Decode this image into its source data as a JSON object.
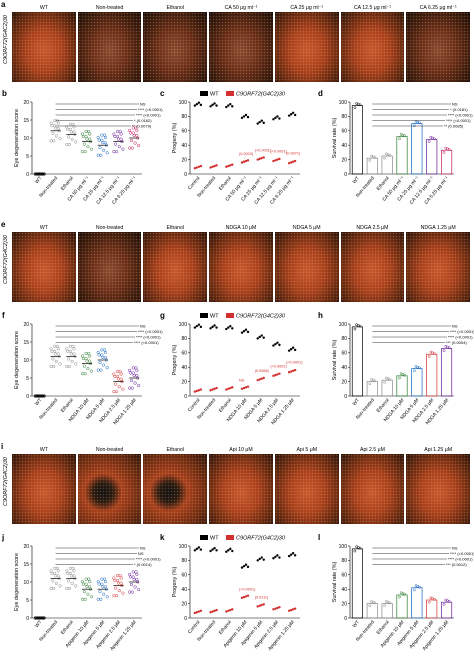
{
  "rows": [
    {
      "letter": "a",
      "genotype": "C9ORF72(G4C2)30",
      "headers": [
        "WT",
        "Non-treated",
        "Ethanol",
        "CA 50 μg ml⁻¹",
        "CA 25 μg ml⁻¹",
        "CA 12.5 μg ml⁻¹",
        "CA 6.25 μg ml⁻¹"
      ],
      "styles": [
        "normal",
        "dark",
        "dark",
        "dark",
        "normal",
        "normal",
        "dark"
      ]
    },
    {
      "letter": "e",
      "genotype": "C9ORF72(G4C2)30",
      "headers": [
        "WT",
        "Non-treated",
        "Ethanol",
        "NDGA 10 μM",
        "NDGA 5 μM",
        "NDGA 2.5 μM",
        "NDGA 1.25 μM"
      ],
      "styles": [
        "normal",
        "dark",
        "normal",
        "normal",
        "normal",
        "normal",
        "normal"
      ]
    },
    {
      "letter": "i",
      "genotype": "C9ORF72(G4C2)30",
      "headers": [
        "WT",
        "Non-treated",
        "Ethanol",
        "Api 10 μM",
        "Api 5 μM",
        "Api 2.5 μM",
        "Api 1.25 μM"
      ],
      "styles": [
        "normal",
        "black",
        "black",
        "normal",
        "normal",
        "normal",
        "normal"
      ]
    }
  ],
  "graph_rows": [
    {
      "left": {
        "letter": "b",
        "ylabel": "Eye degeneration score",
        "ylim": [
          0,
          20
        ],
        "ticks": [
          0,
          5,
          10,
          15,
          20
        ],
        "categories": [
          "WT",
          "Non-treated",
          "Ethanol",
          "CA 50 μg ml⁻¹",
          "CA 25 μg ml⁻¹",
          "CA 12.5 μg ml⁻¹",
          "CA 6.25 μg ml⁻¹"
        ],
        "means": [
          0,
          12,
          11,
          9,
          8,
          9,
          10
        ],
        "colors": [
          "#000000",
          "#888888",
          "#888888",
          "#2e7d32",
          "#1565c0",
          "#6a1b9a",
          "#c2185b"
        ],
        "annotations": [
          "NS",
          "**** (<0.0001)",
          "**** (<0.0001)",
          "* (0.0162)",
          "** (0.0079)"
        ]
      },
      "middle": {
        "letter": "c",
        "ylabel": "Progeny (%)",
        "legend": [
          "WT",
          "C9ORF72(G4C2)30"
        ],
        "ylim": [
          0,
          100
        ],
        "ticks": [
          0,
          20,
          40,
          60,
          80,
          100
        ],
        "categories": [
          "Control",
          "Non-treated",
          "Ethanol",
          "CA 50 μg ml⁻¹",
          "CA 25 μg ml⁻¹",
          "CA 12.5 μg ml⁻¹",
          "CA 6.25 μg ml⁻¹"
        ],
        "wt": [
          97,
          96,
          95,
          80,
          72,
          78,
          83
        ],
        "c9": [
          10,
          11,
          12,
          18,
          22,
          20,
          17
        ],
        "annotations": [
          "(0.0003)",
          "(<0.0001)",
          "(<0.0001)",
          "(0.0071)"
        ]
      },
      "right": {
        "letter": "d",
        "ylabel": "Survival rate (%)",
        "ylim": [
          0,
          100
        ],
        "ticks": [
          0,
          20,
          40,
          60,
          80,
          100
        ],
        "categories": [
          "WT",
          "Non-treated",
          "Ethanol",
          "CA 50 μg ml⁻¹",
          "CA 25 μg ml⁻¹",
          "CA 12.5 μg ml⁻¹",
          "CA 6.25 μg ml⁻¹"
        ],
        "values": [
          95,
          22,
          25,
          52,
          70,
          48,
          33
        ],
        "colors": [
          "#000000",
          "#888888",
          "#888888",
          "#2e7d32",
          "#1565c0",
          "#6a1b9a",
          "#c2185b"
        ],
        "annotations": [
          "NS",
          "* (0.0181)",
          "**** (<0.0001)",
          "**** (<0.0001)",
          "** (0.0085)"
        ]
      }
    },
    {
      "left": {
        "letter": "f",
        "ylabel": "Eye degeneration score",
        "ylim": [
          0,
          20
        ],
        "ticks": [
          0,
          5,
          10,
          15,
          20
        ],
        "categories": [
          "WT",
          "Non-treated",
          "Ethanol",
          "NDGA 10 μM",
          "NDGA 5 μM",
          "NDGA 2.5 μM",
          "NDGA 1.25 μM"
        ],
        "means": [
          0,
          11,
          11,
          9,
          10,
          4,
          5
        ],
        "colors": [
          "#000000",
          "#888888",
          "#888888",
          "#2e7d32",
          "#1565c0",
          "#d32f2f",
          "#6a1b9a"
        ],
        "annotations": [
          "NS",
          "**** (<0.0001)",
          "**** (<0.0001)",
          "**** (<0.0001)"
        ]
      },
      "middle": {
        "letter": "g",
        "ylabel": "Progeny (%)",
        "legend": [
          "WT",
          "C9ORF72(G4C2)30"
        ],
        "ylim": [
          0,
          100
        ],
        "ticks": [
          0,
          20,
          40,
          60,
          80,
          100
        ],
        "categories": [
          "Control",
          "Non-treated",
          "Ethanol",
          "NDGA 10 μM",
          "NDGA 5 μM",
          "NDGA 2.5 μM",
          "NDGA 1.25 μM"
        ],
        "wt": [
          97,
          96,
          95,
          90,
          82,
          72,
          65
        ],
        "c9": [
          8,
          10,
          11,
          12,
          24,
          30,
          35
        ],
        "annotations": [
          "NS",
          "(0.0068)",
          "(<0.0001)",
          "(<0.0001)"
        ]
      },
      "right": {
        "letter": "h",
        "ylabel": "Survival rate (%)",
        "ylim": [
          0,
          100
        ],
        "ticks": [
          0,
          20,
          40,
          60,
          80,
          100
        ],
        "categories": [
          "WT",
          "Non-treated",
          "Ethanol",
          "NDGA 10 μM",
          "NDGA 5 μM",
          "NDGA 2.5 μM",
          "NDGA 1.25 μM"
        ],
        "values": [
          96,
          20,
          22,
          28,
          38,
          58,
          66
        ],
        "colors": [
          "#000000",
          "#888888",
          "#888888",
          "#2e7d32",
          "#1565c0",
          "#d32f2f",
          "#6a1b9a"
        ],
        "annotations": [
          "NS",
          "**** (<0.0001)",
          "**** (<0.0001)",
          "*** (0.0004)"
        ]
      }
    },
    {
      "left": {
        "letter": "j",
        "ylabel": "Eye degeneration score",
        "ylim": [
          0,
          20
        ],
        "ticks": [
          0,
          5,
          10,
          15,
          20
        ],
        "categories": [
          "WT",
          "Non-treated",
          "Ethanol",
          "Apigenin 10 μM",
          "Apigenin 5 μM",
          "Apigenin 2.5 μM",
          "Apigenin 1.25 μM"
        ],
        "means": [
          0,
          11,
          11,
          8,
          8,
          9,
          10
        ],
        "colors": [
          "#000000",
          "#888888",
          "#888888",
          "#2e7d32",
          "#1565c0",
          "#d32f2f",
          "#6a1b9a"
        ],
        "annotations": [
          "NS",
          "NS",
          "**** (<0.0001)",
          "* (0.0014)"
        ]
      },
      "middle": {
        "letter": "k",
        "ylabel": "Progeny (%)",
        "legend": [
          "WT",
          "C9ORF72(G4C2)30"
        ],
        "ylim": [
          0,
          100
        ],
        "ticks": [
          0,
          20,
          40,
          60,
          80,
          100
        ],
        "categories": [
          "Control",
          "Non-treated",
          "Ethanol",
          "Apigenin 10 μM",
          "Apigenin 5 μM",
          "Apigenin 2.5 μM",
          "Apigenin 1.25 μM"
        ],
        "wt": [
          96,
          95,
          94,
          72,
          82,
          85,
          88
        ],
        "c9": [
          9,
          10,
          11,
          30,
          18,
          14,
          12
        ],
        "annotations": [
          "(<0.0001)",
          "(0.0111)"
        ]
      },
      "right": {
        "letter": "l",
        "ylabel": "Survival rate (%)",
        "ylim": [
          0,
          100
        ],
        "ticks": [
          0,
          20,
          40,
          60,
          80,
          100
        ],
        "categories": [
          "WT",
          "Non-treated",
          "Ethanol",
          "Apigenin 10 μM",
          "Apigenin 5 μM",
          "Apigenin 2.5 μM",
          "Apigenin 1.25 μM"
        ],
        "values": [
          96,
          20,
          20,
          32,
          42,
          25,
          22
        ],
        "colors": [
          "#000000",
          "#888888",
          "#888888",
          "#2e7d32",
          "#1565c0",
          "#d32f2f",
          "#6a1b9a"
        ],
        "annotations": [
          "NS",
          "**** (<0.0001)",
          "**** (<0.0001)",
          "*** (0.0012)"
        ]
      }
    }
  ],
  "chart_data": [
    {
      "type": "scatter",
      "panel": "b",
      "title": "",
      "ylabel": "Eye degeneration score",
      "categories": [
        "WT",
        "Non-treated",
        "Ethanol",
        "CA 50 μg ml⁻¹",
        "CA 25 μg ml⁻¹",
        "CA 12.5 μg ml⁻¹",
        "CA 6.25 μg ml⁻¹"
      ],
      "values": [
        0,
        12,
        11,
        9,
        8,
        9,
        10
      ],
      "ylim": [
        0,
        20
      ]
    },
    {
      "type": "scatter",
      "panel": "c",
      "title": "",
      "ylabel": "Progeny (%)",
      "categories": [
        "Control",
        "Non-treated",
        "Ethanol",
        "CA 50 μg ml⁻¹",
        "CA 25 μg ml⁻¹",
        "CA 12.5 μg ml⁻¹",
        "CA 6.25 μg ml⁻¹"
      ],
      "series": [
        {
          "name": "WT",
          "values": [
            97,
            96,
            95,
            80,
            72,
            78,
            83
          ]
        },
        {
          "name": "C9ORF72(G4C2)30",
          "values": [
            10,
            11,
            12,
            18,
            22,
            20,
            17
          ]
        }
      ],
      "ylim": [
        0,
        100
      ]
    },
    {
      "type": "bar",
      "panel": "d",
      "title": "",
      "ylabel": "Survival rate (%)",
      "categories": [
        "WT",
        "Non-treated",
        "Ethanol",
        "CA 50 μg ml⁻¹",
        "CA 25 μg ml⁻¹",
        "CA 12.5 μg ml⁻¹",
        "CA 6.25 μg ml⁻¹"
      ],
      "values": [
        95,
        22,
        25,
        52,
        70,
        48,
        33
      ],
      "ylim": [
        0,
        100
      ]
    },
    {
      "type": "scatter",
      "panel": "f",
      "title": "",
      "ylabel": "Eye degeneration score",
      "categories": [
        "WT",
        "Non-treated",
        "Ethanol",
        "NDGA 10 μM",
        "NDGA 5 μM",
        "NDGA 2.5 μM",
        "NDGA 1.25 μM"
      ],
      "values": [
        0,
        11,
        11,
        9,
        10,
        4,
        5
      ],
      "ylim": [
        0,
        20
      ]
    },
    {
      "type": "scatter",
      "panel": "g",
      "title": "",
      "ylabel": "Progeny (%)",
      "categories": [
        "Control",
        "Non-treated",
        "Ethanol",
        "NDGA 10 μM",
        "NDGA 5 μM",
        "NDGA 2.5 μM",
        "NDGA 1.25 μM"
      ],
      "series": [
        {
          "name": "WT",
          "values": [
            97,
            96,
            95,
            90,
            82,
            72,
            65
          ]
        },
        {
          "name": "C9ORF72(G4C2)30",
          "values": [
            8,
            10,
            11,
            12,
            24,
            30,
            35
          ]
        }
      ],
      "ylim": [
        0,
        100
      ]
    },
    {
      "type": "bar",
      "panel": "h",
      "title": "",
      "ylabel": "Survival rate (%)",
      "categories": [
        "WT",
        "Non-treated",
        "Ethanol",
        "NDGA 10 μM",
        "NDGA 5 μM",
        "NDGA 2.5 μM",
        "NDGA 1.25 μM"
      ],
      "values": [
        96,
        20,
        22,
        28,
        38,
        58,
        66
      ],
      "ylim": [
        0,
        100
      ]
    },
    {
      "type": "scatter",
      "panel": "j",
      "title": "",
      "ylabel": "Eye degeneration score",
      "categories": [
        "WT",
        "Non-treated",
        "Ethanol",
        "Apigenin 10 μM",
        "Apigenin 5 μM",
        "Apigenin 2.5 μM",
        "Apigenin 1.25 μM"
      ],
      "values": [
        0,
        11,
        11,
        8,
        8,
        9,
        10
      ],
      "ylim": [
        0,
        20
      ]
    },
    {
      "type": "scatter",
      "panel": "k",
      "title": "",
      "ylabel": "Progeny (%)",
      "categories": [
        "Control",
        "Non-treated",
        "Ethanol",
        "Apigenin 10 μM",
        "Apigenin 5 μM",
        "Apigenin 2.5 μM",
        "Apigenin 1.25 μM"
      ],
      "series": [
        {
          "name": "WT",
          "values": [
            96,
            95,
            94,
            72,
            82,
            85,
            88
          ]
        },
        {
          "name": "C9ORF72(G4C2)30",
          "values": [
            9,
            10,
            11,
            30,
            18,
            14,
            12
          ]
        }
      ],
      "ylim": [
        0,
        100
      ]
    },
    {
      "type": "bar",
      "panel": "l",
      "title": "",
      "ylabel": "Survival rate (%)",
      "categories": [
        "WT",
        "Non-treated",
        "Ethanol",
        "Apigenin 10 μM",
        "Apigenin 5 μM",
        "Apigenin 2.5 μM",
        "Apigenin 1.25 μM"
      ],
      "values": [
        96,
        20,
        20,
        32,
        42,
        25,
        22
      ],
      "ylim": [
        0,
        100
      ]
    }
  ]
}
